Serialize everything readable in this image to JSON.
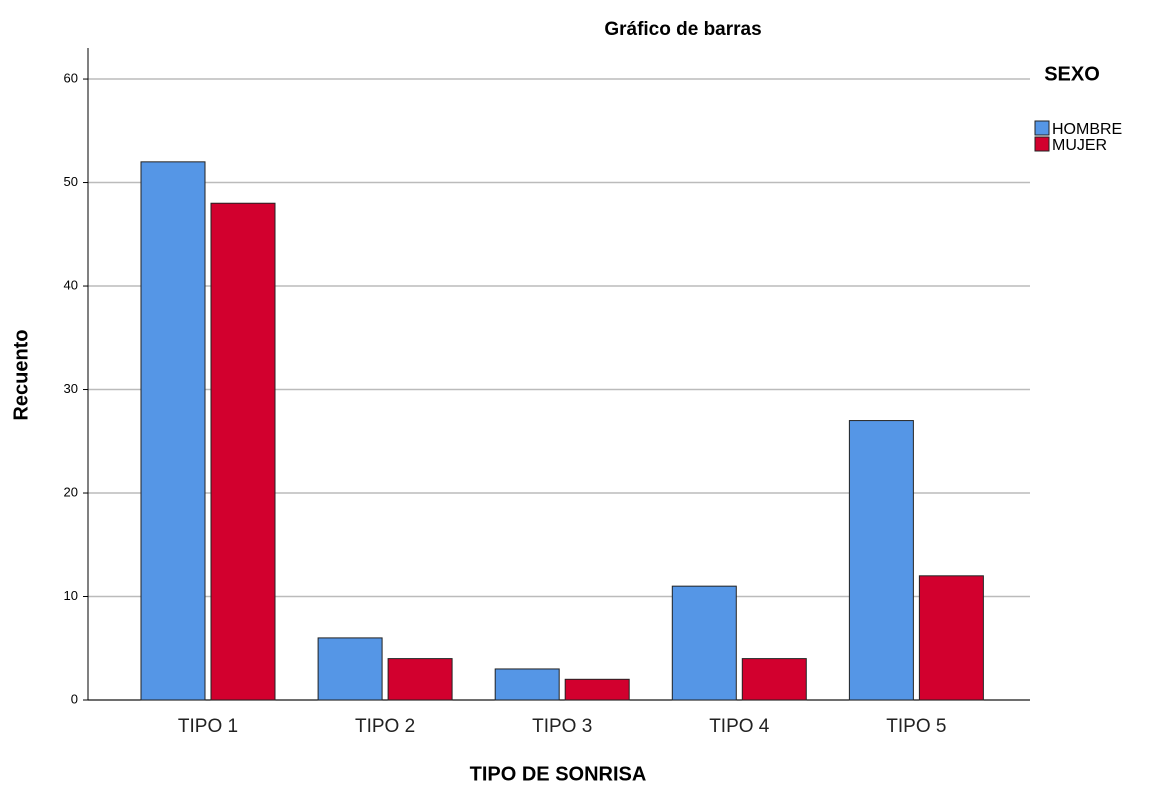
{
  "chart_data": {
    "type": "bar",
    "title": "Gráfico de barras",
    "x_label": "TIPO DE SONRISA",
    "y_label": "Recuento",
    "legend_title": "SEXO",
    "legend_position": "right",
    "categories": [
      "TIPO 1",
      "TIPO 2",
      "TIPO 3",
      "TIPO 4",
      "TIPO 5"
    ],
    "series": [
      {
        "name": "HOMBRE",
        "color": "#5596e6",
        "values": [
          52,
          6,
          3,
          11,
          27
        ]
      },
      {
        "name": "MUJER",
        "color": "#d2002e",
        "values": [
          48,
          4,
          2,
          4,
          12
        ]
      }
    ],
    "ylim": [
      0,
      63
    ],
    "yticks": [
      0,
      10,
      20,
      30,
      40,
      50,
      60
    ],
    "grid": true
  }
}
